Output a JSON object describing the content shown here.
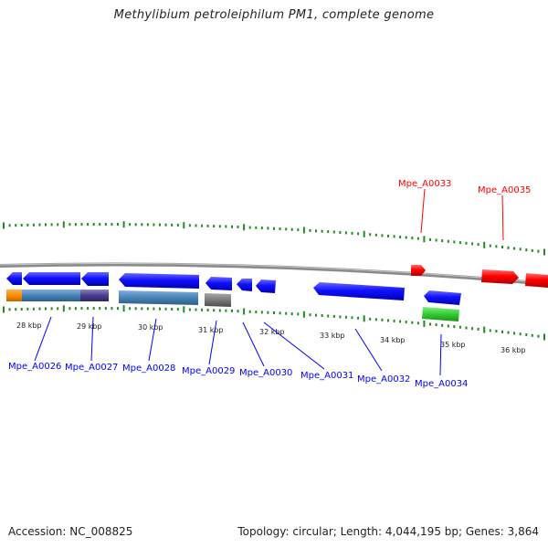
{
  "title": "Methylibium petroleiphilum PM1, complete genome",
  "accession": "Accession: NC_008825",
  "summary": "Topology: circular; Length: 4,044,195 bp; Genes: 3,864",
  "colors": {
    "forward": "#ff0000",
    "reverse": "#0000ff",
    "tick": "#228b22",
    "backbone": "#808080"
  },
  "kbp_labels": [
    "28 kbp",
    "29 kbp",
    "30 kbp",
    "31 kbp",
    "32 kbp",
    "33 kbp",
    "34 kbp",
    "35 kbp",
    "36 kbp"
  ],
  "gene_labels": {
    "Mpe_A0026": "Mpe_A0026",
    "Mpe_A0027": "Mpe_A0027",
    "Mpe_A0028": "Mpe_A0028",
    "Mpe_A0029": "Mpe_A0029",
    "Mpe_A0030": "Mpe_A0030",
    "Mpe_A0031": "Mpe_A0031",
    "Mpe_A0032": "Mpe_A0032",
    "Mpe_A0033": "Mpe_A0033",
    "Mpe_A0034": "Mpe_A0034",
    "Mpe_A0035": "Mpe_A0035"
  }
}
